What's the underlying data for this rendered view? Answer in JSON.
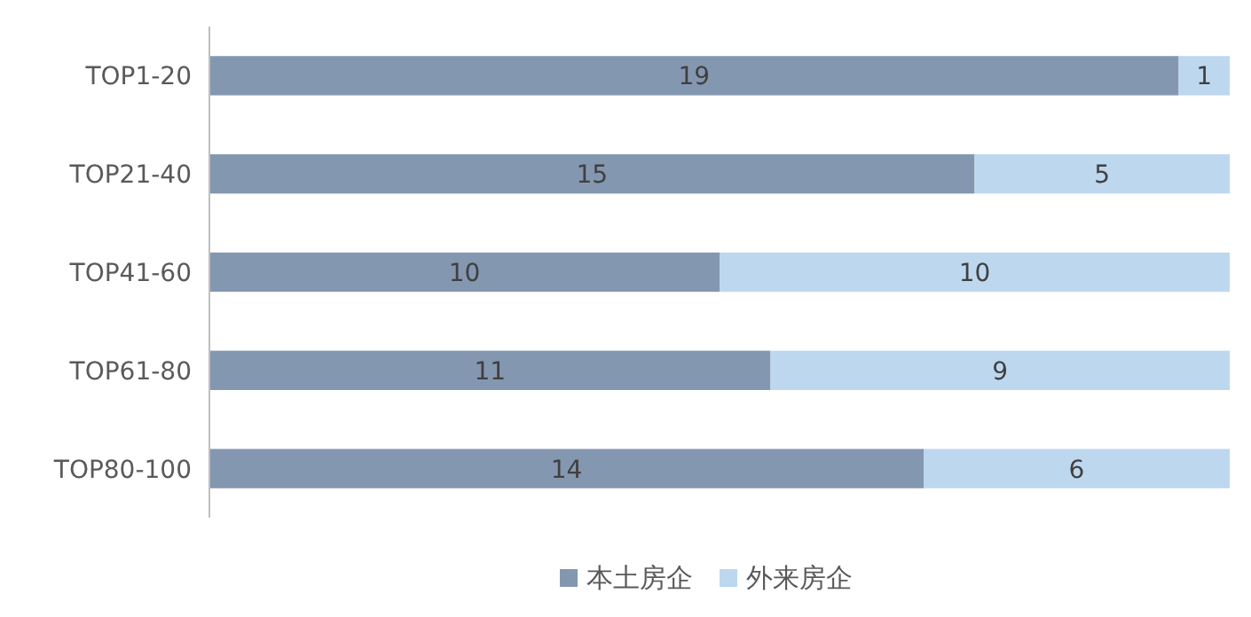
{
  "chart_data": {
    "type": "bar",
    "orientation": "horizontal",
    "stacked": true,
    "data_labels": true,
    "legend": "bottom",
    "categories": [
      "TOP1-20",
      "TOP21-40",
      "TOP41-60",
      "TOP61-80",
      "TOP80-100"
    ],
    "series": [
      {
        "name": "本土房企",
        "color": "#8497b0",
        "values": [
          19,
          15,
          10,
          11,
          14
        ]
      },
      {
        "name": "外来房企",
        "color": "#bdd7ee",
        "values": [
          1,
          5,
          10,
          9,
          6
        ]
      }
    ]
  }
}
